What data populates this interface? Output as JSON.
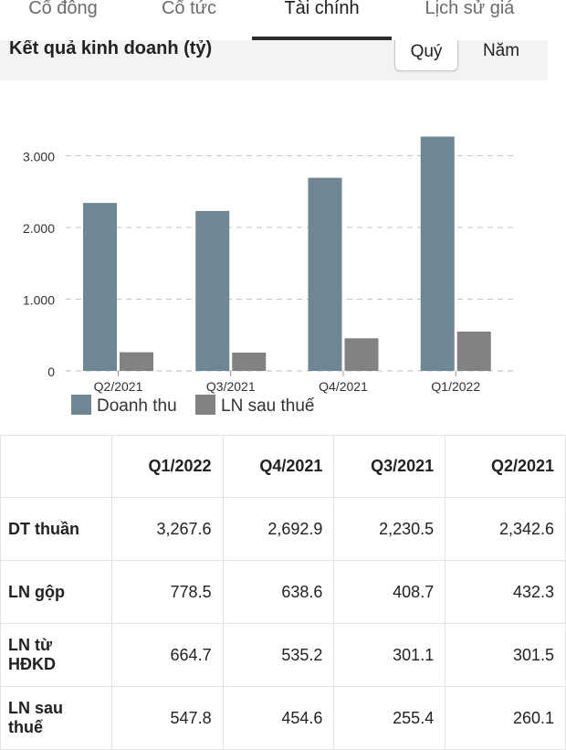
{
  "tabs": [
    {
      "label": "Cổ đông",
      "active": false
    },
    {
      "label": "Cổ tức",
      "active": false
    },
    {
      "label": "Tài chính",
      "active": true
    },
    {
      "label": "Lịch sử giá",
      "active": false
    }
  ],
  "section": {
    "title": "Kết quả kinh doanh (tỷ)",
    "period_options": [
      "Quý",
      "Năm"
    ],
    "selected_period": "Quý"
  },
  "chart_data": {
    "type": "bar",
    "categories": [
      "Q2/2021",
      "Q3/2021",
      "Q4/2021",
      "Q1/2022"
    ],
    "series": [
      {
        "name": "Doanh thu",
        "color": "#6f8793",
        "values": [
          2342.6,
          2230.5,
          2692.9,
          3267.6
        ]
      },
      {
        "name": "LN sau thuế",
        "color": "#828282",
        "values": [
          260.1,
          255.4,
          454.6,
          547.8
        ]
      }
    ],
    "ylim": [
      0,
      3300
    ],
    "yticks": [
      0,
      1000,
      2000,
      3000
    ],
    "ytick_labels": [
      "0",
      "1.000",
      "2.000",
      "3.000"
    ],
    "grid": true,
    "legend": "bottom-left"
  },
  "table": {
    "headers": [
      "",
      "Q1/2022",
      "Q4/2021",
      "Q3/2021",
      "Q2/2021"
    ],
    "rows": [
      {
        "label": "DT thuần",
        "values": [
          "3,267.6",
          "2,692.9",
          "2,230.5",
          "2,342.6"
        ]
      },
      {
        "label": "LN gộp",
        "values": [
          "778.5",
          "638.6",
          "408.7",
          "432.3"
        ]
      },
      {
        "label": "LN từ HĐKD",
        "values": [
          "664.7",
          "535.2",
          "301.1",
          "301.5"
        ]
      },
      {
        "label": "LN sau thuế",
        "values": [
          "547.8",
          "454.6",
          "255.4",
          "260.1"
        ]
      }
    ]
  }
}
